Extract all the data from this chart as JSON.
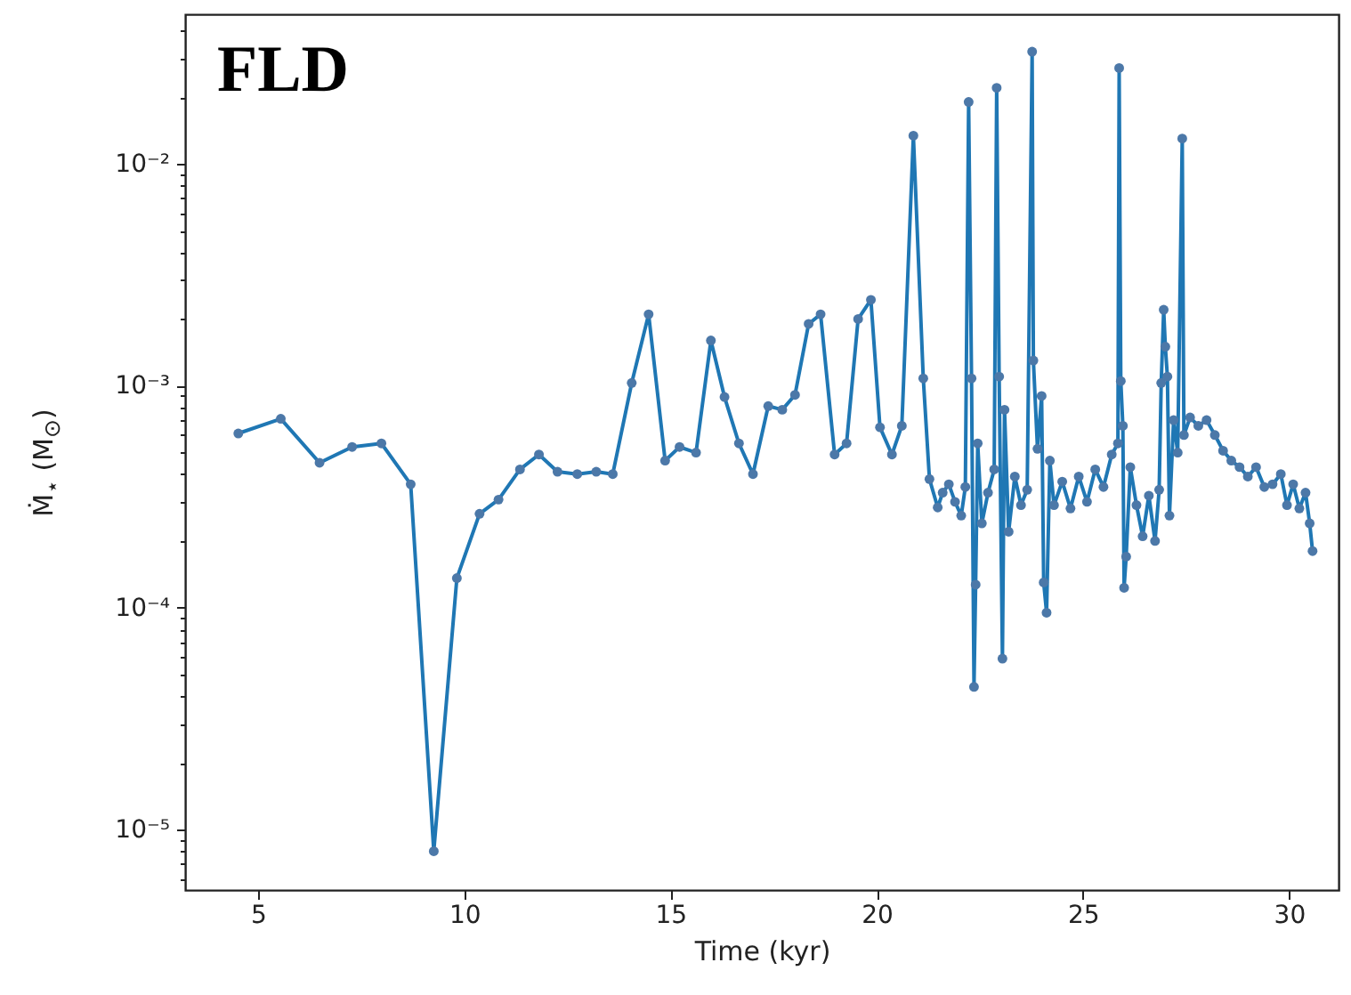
{
  "chart_data": {
    "type": "line",
    "xlabel": "Time (kyr)",
    "ylabel": "Ṁ$_{⋆}$ (M$_{⊙}$)",
    "annotations": [
      "FLD"
    ],
    "log": "y",
    "grid": false,
    "marker": "circle",
    "line_style": "solid",
    "xlim": [
      3.23,
      31.2
    ],
    "ylim": [
      5.35e-06,
      0.0472
    ],
    "xticks": [
      5,
      10,
      15,
      20,
      25,
      30
    ],
    "yticks": [
      {
        "value": 6e-06,
        "label": null
      },
      {
        "value": 7e-06,
        "label": null
      },
      {
        "value": 8e-06,
        "label": null
      },
      {
        "value": 9e-06,
        "label": null
      },
      {
        "value": 1e-05,
        "label": "10⁻⁵"
      },
      {
        "value": 2e-05,
        "label": null
      },
      {
        "value": 3e-05,
        "label": null
      },
      {
        "value": 4e-05,
        "label": null
      },
      {
        "value": 5e-05,
        "label": null
      },
      {
        "value": 6e-05,
        "label": null
      },
      {
        "value": 7e-05,
        "label": null
      },
      {
        "value": 8e-05,
        "label": null
      },
      {
        "value": 9e-05,
        "label": null
      },
      {
        "value": 0.0001,
        "label": "10⁻⁴"
      },
      {
        "value": 0.0002,
        "label": null
      },
      {
        "value": 0.0003,
        "label": null
      },
      {
        "value": 0.0004,
        "label": null
      },
      {
        "value": 0.0005,
        "label": null
      },
      {
        "value": 0.0006,
        "label": null
      },
      {
        "value": 0.0007,
        "label": null
      },
      {
        "value": 0.0008,
        "label": null
      },
      {
        "value": 0.0009,
        "label": null
      },
      {
        "value": 0.001,
        "label": "10⁻³"
      },
      {
        "value": 0.002,
        "label": null
      },
      {
        "value": 0.003,
        "label": null
      },
      {
        "value": 0.004,
        "label": null
      },
      {
        "value": 0.005,
        "label": null
      },
      {
        "value": 0.006,
        "label": null
      },
      {
        "value": 0.007,
        "label": null
      },
      {
        "value": 0.008,
        "label": null
      },
      {
        "value": 0.009,
        "label": null
      },
      {
        "value": 0.01,
        "label": "10⁻²"
      },
      {
        "value": 0.02,
        "label": null
      },
      {
        "value": 0.03,
        "label": null
      },
      {
        "value": 0.04,
        "label": null
      }
    ],
    "series": [
      {
        "color": "#1f77b4",
        "x": [
          4.52,
          5.55,
          6.49,
          7.28,
          7.99,
          8.7,
          9.26,
          9.82,
          10.37,
          10.83,
          11.35,
          11.81,
          12.26,
          12.74,
          13.2,
          13.6,
          14.06,
          14.47,
          14.87,
          15.22,
          15.62,
          15.98,
          16.31,
          16.66,
          17.0,
          17.37,
          17.71,
          18.02,
          18.35,
          18.64,
          18.98,
          19.27,
          19.55,
          19.86,
          20.08,
          20.37,
          20.61,
          20.89,
          21.13,
          21.28,
          21.48,
          21.6,
          21.75,
          21.9,
          22.05,
          22.15,
          22.23,
          22.3,
          22.36,
          22.4,
          22.45,
          22.55,
          22.7,
          22.85,
          22.91,
          22.97,
          23.05,
          23.1,
          23.2,
          23.35,
          23.5,
          23.65,
          23.77,
          23.8,
          23.9,
          24.0,
          24.05,
          24.12,
          24.2,
          24.3,
          24.5,
          24.7,
          24.9,
          25.1,
          25.3,
          25.5,
          25.7,
          25.85,
          25.88,
          25.92,
          25.97,
          26.0,
          26.05,
          26.15,
          26.3,
          26.45,
          26.6,
          26.75,
          26.85,
          26.9,
          26.96,
          27.0,
          27.05,
          27.1,
          27.2,
          27.3,
          27.41,
          27.45,
          27.6,
          27.8,
          28.0,
          28.2,
          28.4,
          28.6,
          28.8,
          29.0,
          29.2,
          29.4,
          29.6,
          29.8,
          29.95,
          30.1,
          30.25,
          30.4,
          30.5,
          30.57
        ],
        "values": [
          0.00061,
          0.00071,
          0.00045,
          0.00053,
          0.00055,
          0.00036,
          8e-06,
          0.000136,
          0.000265,
          0.000307,
          0.00042,
          0.00049,
          0.00041,
          0.0004,
          0.00041,
          0.0004,
          0.00103,
          0.0021,
          0.00046,
          0.00053,
          0.0005,
          0.0016,
          0.00089,
          0.00055,
          0.0004,
          0.00081,
          0.00078,
          0.00091,
          0.0019,
          0.0021,
          0.00049,
          0.00055,
          0.002,
          0.00244,
          0.00065,
          0.00049,
          0.00066,
          0.0134,
          0.00108,
          0.00038,
          0.000283,
          0.00033,
          0.00036,
          0.0003,
          0.00026,
          0.00035,
          0.019,
          0.00108,
          4.4e-05,
          0.000127,
          0.00055,
          0.00024,
          0.00033,
          0.00042,
          0.022,
          0.0011,
          5.9e-05,
          0.00078,
          0.00022,
          0.00039,
          0.00029,
          0.00034,
          0.032,
          0.0013,
          0.00052,
          0.0009,
          0.00013,
          9.5e-05,
          0.00046,
          0.00029,
          0.00037,
          0.00028,
          0.00039,
          0.0003,
          0.00042,
          0.00035,
          0.00049,
          0.00055,
          0.027,
          0.00105,
          0.00066,
          0.000123,
          0.00017,
          0.00043,
          0.00029,
          0.00021,
          0.00032,
          0.0002,
          0.00034,
          0.00103,
          0.0022,
          0.0015,
          0.0011,
          0.00026,
          0.0007,
          0.0005,
          0.013,
          0.0006,
          0.00072,
          0.00066,
          0.0007,
          0.0006,
          0.00051,
          0.00046,
          0.00043,
          0.00039,
          0.00043,
          0.00035,
          0.00036,
          0.0004,
          0.00029,
          0.00036,
          0.00028,
          0.00033,
          0.00024,
          0.00018
        ]
      }
    ]
  }
}
